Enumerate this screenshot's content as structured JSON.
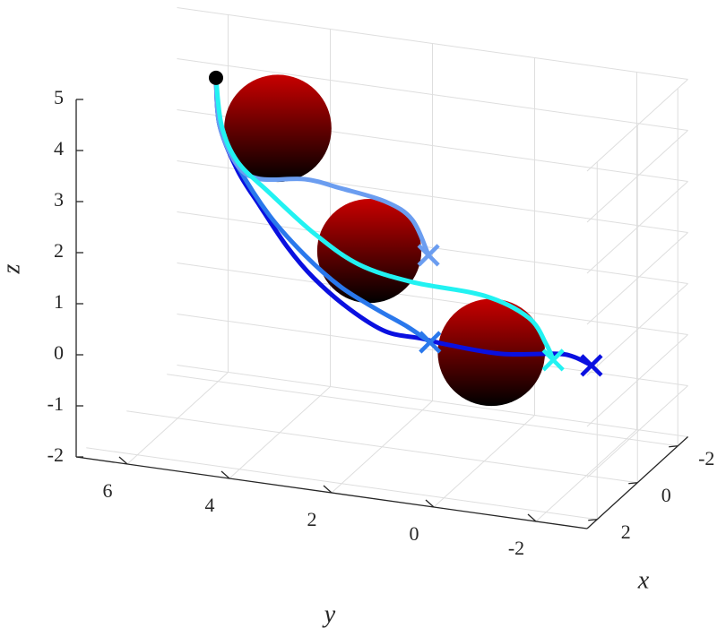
{
  "chart_data": {
    "type": "line3d",
    "xlabel": "x",
    "ylabel": "y",
    "zlabel": "z",
    "xlim": [
      -2.5,
      2.5
    ],
    "ylim": [
      -3,
      7
    ],
    "zlim": [
      -2,
      5
    ],
    "xticks": [
      -2,
      0,
      2
    ],
    "yticks": [
      -2,
      0,
      2,
      4,
      6
    ],
    "zticks": [
      -2,
      -1,
      0,
      1,
      2,
      3,
      4,
      5
    ],
    "grid": true,
    "start_color": "#000000",
    "obstacle_color": "#c80000",
    "obstacles": [
      {
        "center": [
          0,
          4.04,
          3.95
        ],
        "radius": 1.05
      },
      {
        "center": [
          0,
          2.25,
          1.8
        ],
        "radius": 1.02
      },
      {
        "center": [
          0,
          -0.14,
          0.15
        ],
        "radius": 1.05
      }
    ],
    "series": [
      {
        "color": "#0a10e0",
        "x": [
          0,
          0,
          0,
          0,
          0,
          0,
          0,
          0,
          0,
          0,
          0,
          0,
          0,
          0
        ],
        "y": [
          5.25,
          5.18,
          4.83,
          4.39,
          3.86,
          3.34,
          2.64,
          1.93,
          1.23,
          0.71,
          -0.35,
          -1.4,
          -1.75,
          -2.1
        ],
        "z": [
          4.77,
          3.85,
          3.02,
          2.38,
          1.66,
          1.12,
          0.61,
          0.27,
          0.23,
          0.18,
          0.15,
          0.3,
          0.29,
          0.17
        ]
      },
      {
        "color": "#2a78ec",
        "x": [
          0,
          0,
          0,
          0,
          0,
          0,
          0,
          0,
          0
        ],
        "y": [
          5.25,
          5.18,
          4.83,
          4.21,
          3.51,
          2.81,
          2.11,
          1.5,
          1.06
        ],
        "z": [
          4.77,
          3.85,
          3.11,
          2.23,
          1.54,
          1.02,
          0.68,
          0.42,
          0.18
        ]
      },
      {
        "color": "#6b9df0",
        "x": [
          0,
          0,
          0,
          0,
          0,
          0,
          0,
          0,
          0
        ],
        "y": [
          5.25,
          5.18,
          4.83,
          4.39,
          3.51,
          2.81,
          1.93,
          1.41,
          1.09
        ],
        "z": [
          4.77,
          3.85,
          3.11,
          2.91,
          3.03,
          2.95,
          2.81,
          2.53,
          1.88
        ]
      },
      {
        "color": "#22f2f2",
        "x": [
          0,
          0,
          0,
          0,
          0,
          0,
          0,
          0,
          0,
          0,
          0
        ],
        "y": [
          5.25,
          5.14,
          4.83,
          4.21,
          3.34,
          2.46,
          1.41,
          0,
          -0.87,
          -1.22,
          -1.35
        ],
        "z": [
          4.77,
          3.85,
          3.19,
          2.67,
          2,
          1.51,
          1.31,
          1.24,
          0.93,
          0.45,
          0.17
        ]
      }
    ]
  }
}
